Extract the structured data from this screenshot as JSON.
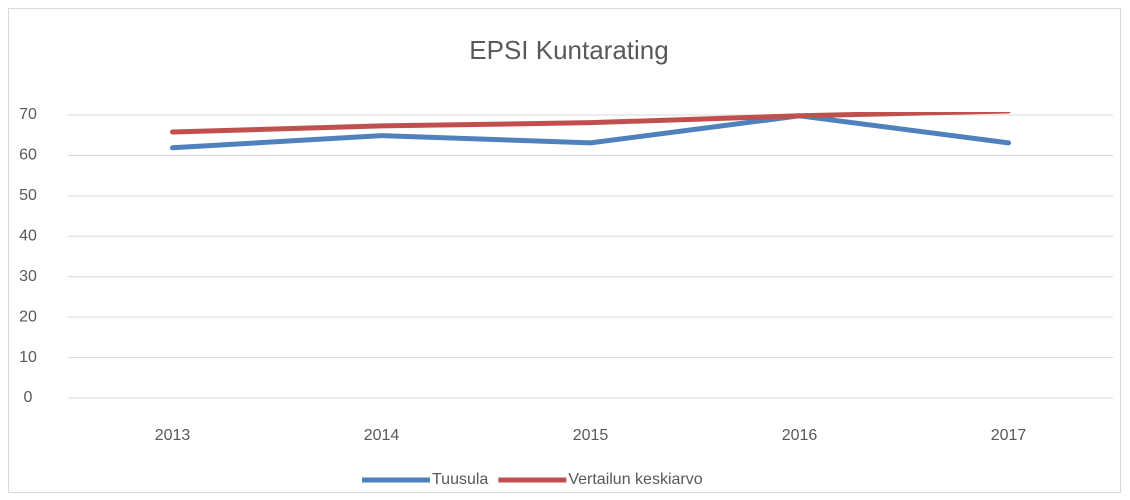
{
  "chart_data": {
    "type": "line",
    "title": "EPSI Kuntarating",
    "categories": [
      "2013",
      "2014",
      "2015",
      "2016",
      "2017"
    ],
    "series": [
      {
        "name": "Tuusula",
        "color": "#4f81bd",
        "values": [
          61.9,
          64.9,
          63.1,
          69.8,
          63.1
        ]
      },
      {
        "name": "Vertailun keskiarvo",
        "color": "#c0504d",
        "values": [
          65.8,
          67.3,
          68.1,
          69.8,
          71
        ]
      }
    ],
    "ylim": [
      0,
      70
    ],
    "yticks": [
      0,
      10,
      20,
      30,
      40,
      50,
      60,
      70
    ],
    "grid": true,
    "legend": "bottom"
  }
}
